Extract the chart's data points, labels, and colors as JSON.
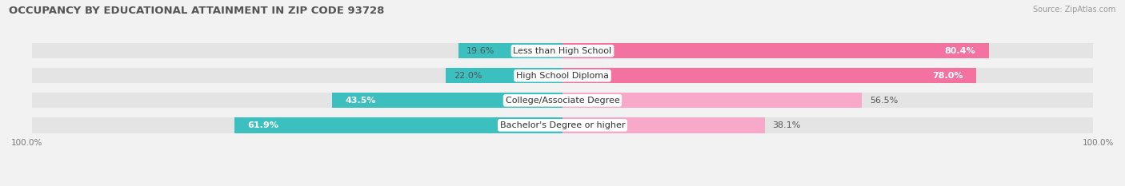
{
  "title": "OCCUPANCY BY EDUCATIONAL ATTAINMENT IN ZIP CODE 93728",
  "source": "Source: ZipAtlas.com",
  "categories": [
    "Less than High School",
    "High School Diploma",
    "College/Associate Degree",
    "Bachelor's Degree or higher"
  ],
  "owner_pct": [
    19.6,
    22.0,
    43.5,
    61.9
  ],
  "renter_pct": [
    80.4,
    78.0,
    56.5,
    38.1
  ],
  "owner_color": "#3BBFBF",
  "renter_color_high": "#F472A0",
  "renter_color_low": "#F8A8C8",
  "bg_color": "#f2f2f2",
  "bar_bg_color": "#e8e8e8",
  "title_fontsize": 9.5,
  "source_fontsize": 7,
  "label_fontsize": 8,
  "cat_fontsize": 8,
  "x_left_label": "100.0%",
  "x_right_label": "100.0%"
}
